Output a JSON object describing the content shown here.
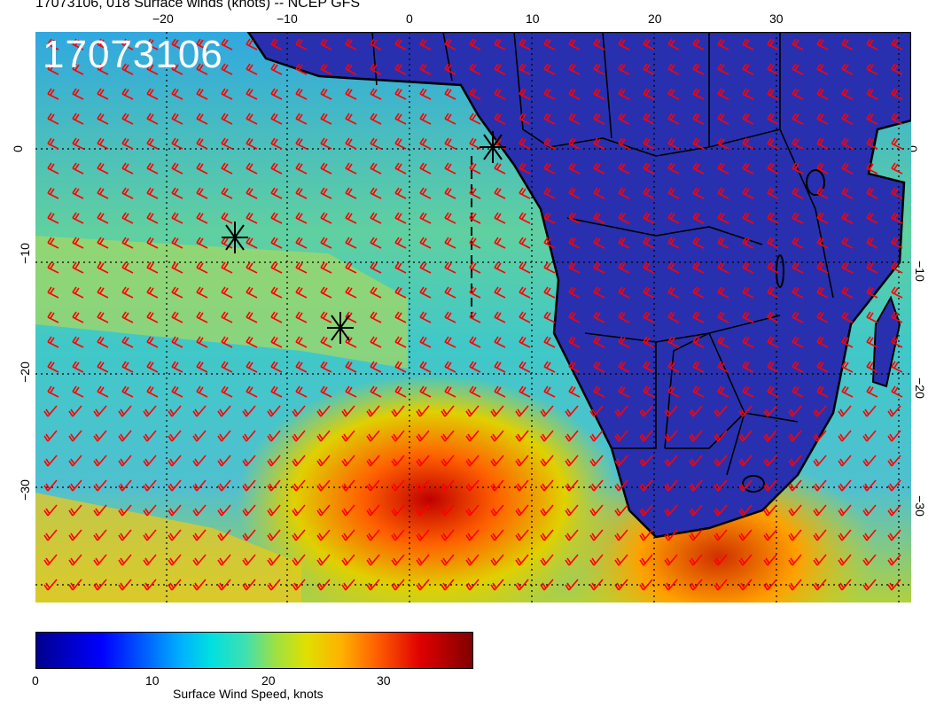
{
  "header": {
    "title": "17073106, 018 Surface winds (knots) -- NCEP GFS",
    "stamp": "17073106"
  },
  "map": {
    "lon_ticks": [
      "−20",
      "−10",
      "0",
      "10",
      "20",
      "30"
    ],
    "lat_ticks": [
      "0",
      "−10",
      "−20",
      "−30"
    ],
    "background_color": "#3fc0d8",
    "land_color": "#2a3fb0",
    "barb_color": "#ff0000",
    "markers": [
      "asterisk-marker",
      "asterisk-marker",
      "asterisk-marker"
    ]
  },
  "colorbar": {
    "ticks": [
      "0",
      "10",
      "20",
      "30"
    ],
    "label": "Surface Wind Speed, knots",
    "range": [
      0,
      38
    ]
  }
}
